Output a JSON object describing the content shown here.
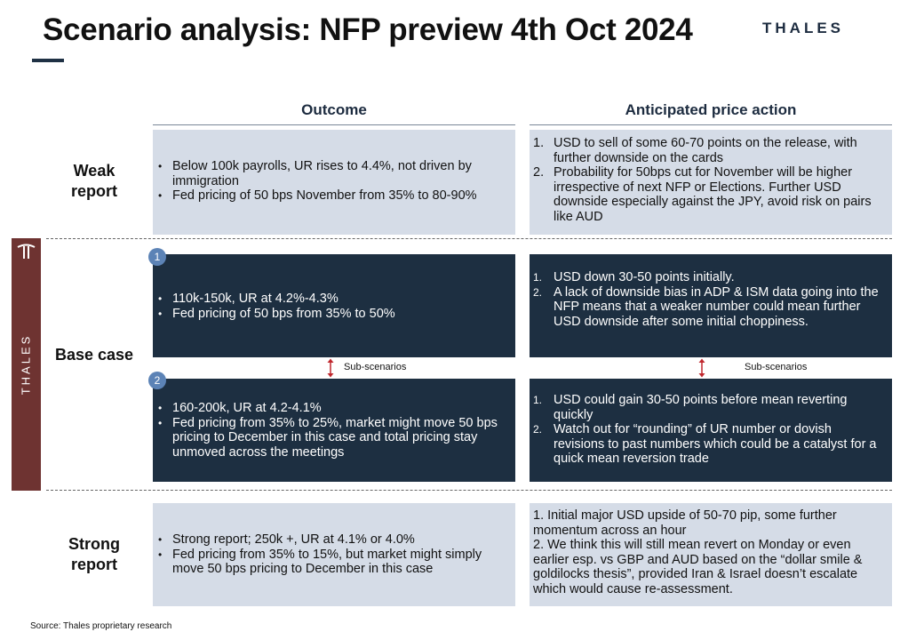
{
  "header": {
    "title": "Scenario analysis: NFP preview 4th Oct 2024",
    "logo": "THALES"
  },
  "columns": {
    "outcome": "Outcome",
    "price_action": "Anticipated price action"
  },
  "weak": {
    "label": "Weak report",
    "outcome": [
      "Below 100k payrolls, UR rises to 4.4%, not driven by immigration",
      "Fed pricing of 50 bps November from 35% to 80-90%"
    ],
    "price_action": [
      {
        "num": "1.",
        "text": "USD to sell of some 60-70 points on the release, with further downside on the cards"
      },
      {
        "num": "2.",
        "text": "Probability for 50bps cut for November will be higher irrespective of next NFP or Elections. Further USD downside especially against the JPY, avoid risk on pairs like AUD"
      }
    ]
  },
  "base": {
    "label": "Base case",
    "sub_scenarios_label": "Sub-scenarios",
    "scenario_1": {
      "number": "1",
      "outcome": [
        "110k-150k, UR at 4.2%-4.3%",
        "Fed pricing of 50 bps from 35% to 50%"
      ],
      "price_action": [
        {
          "num": "1.",
          "text": "USD down 30-50 points initially."
        },
        {
          "num": "2.",
          "text": "A lack of downside bias in ADP & ISM data going into the NFP means that a weaker number could mean further USD downside after some initial choppiness."
        }
      ]
    },
    "scenario_2": {
      "number": "2",
      "outcome": [
        "160-200k, UR at 4.2-4.1%",
        "Fed pricing from 35% to 25%, market might move 50 bps pricing to December in this case and total pricing stay unmoved across the meetings"
      ],
      "price_action": [
        {
          "num": "1.",
          "text": "USD could gain 30-50 points before mean reverting quickly"
        },
        {
          "num": "2.",
          "text": "Watch out for “rounding” of UR number or dovish revisions to past numbers which could be a catalyst for a quick mean reversion trade"
        }
      ]
    }
  },
  "strong": {
    "label": "Strong report",
    "outcome": [
      "Strong report; 250k +, UR at 4.1% or 4.0%",
      "Fed pricing from 35% to 15%,  but market might simply move 50 bps pricing to December in this case"
    ],
    "price_action": [
      "1. Initial major USD upside of 50-70 pip, some further momentum across an hour",
      "2. We think this will still mean revert on Monday or even earlier esp. vs GBP and AUD based on the “dollar smile & goldilocks thesis”, provided Iran & Israel doesn’t escalate which would cause re-assessment."
    ]
  },
  "sidebar": {
    "label": "THALES"
  },
  "footer": {
    "source": "Source: Thales proprietary research"
  },
  "colors": {
    "dark_box": "#1d2f41",
    "light_box": "#d5dce7",
    "sidebar": "#6e3331",
    "badge": "#5c83b6",
    "arrow": "#c0272d"
  }
}
